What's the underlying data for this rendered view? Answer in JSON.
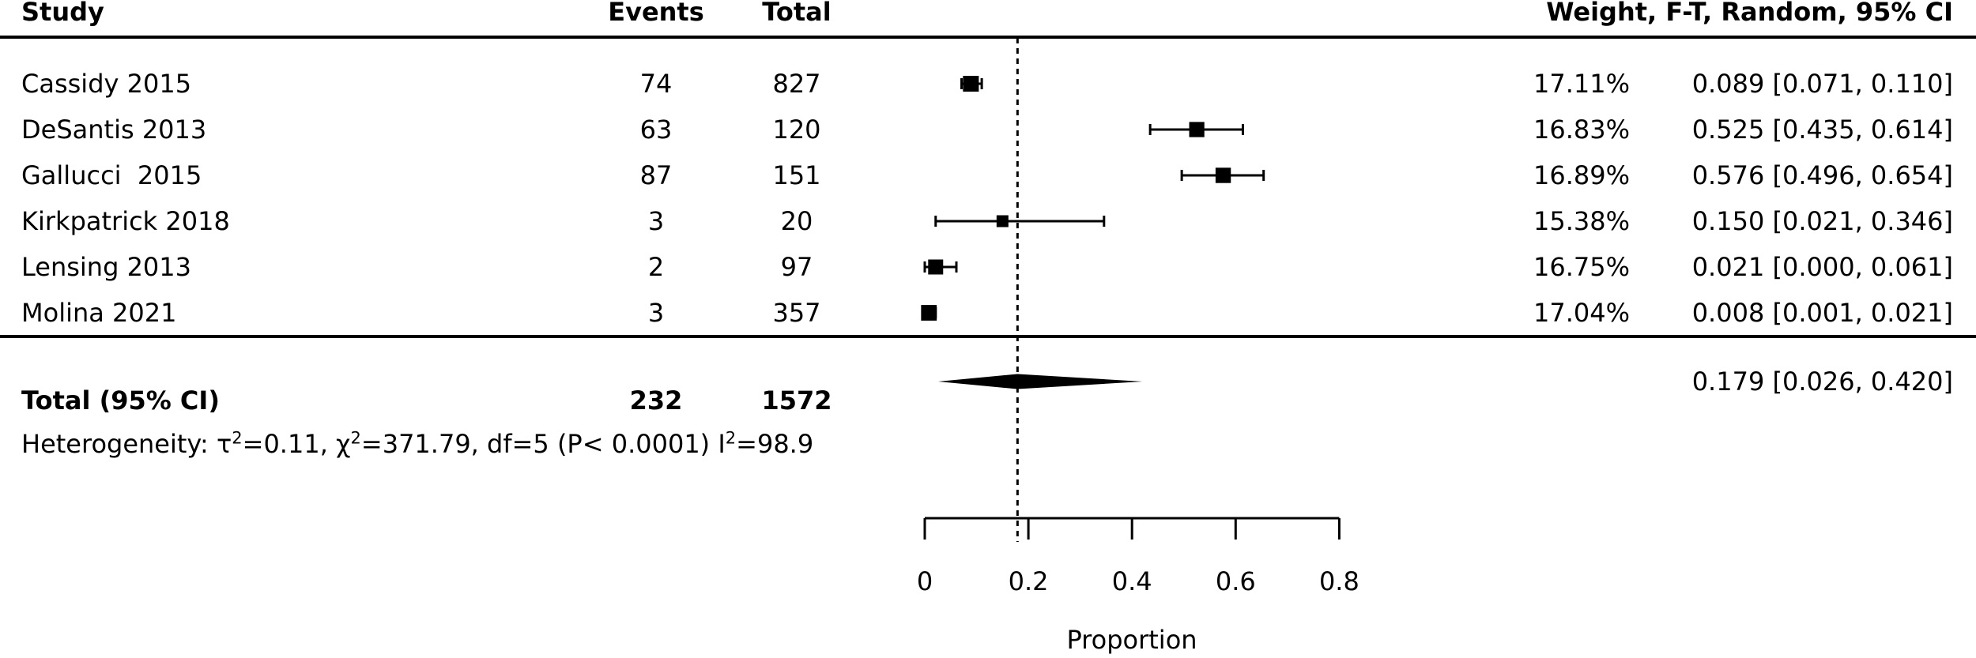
{
  "header": {
    "study": "Study",
    "events": "Events",
    "total": "Total",
    "right": "Weight, F-T, Random, 95% CI"
  },
  "chart_data": {
    "type": "forest",
    "xlabel": "Proportion",
    "xlim": [
      0,
      0.8
    ],
    "x_tick_labels": [
      "0",
      "0.2",
      "0.4",
      "0.6",
      "0.8"
    ],
    "x_tick_values": [
      0,
      0.2,
      0.4,
      0.6,
      0.8
    ],
    "grid": false,
    "marker_color": "#000000",
    "reference_line": 0.179,
    "studies": [
      {
        "study": "Cassidy 2015",
        "events": "74",
        "total": "827",
        "weight": "17.11%",
        "weight_value": 17.11,
        "estimate": 0.089,
        "ci_low": 0.071,
        "ci_high": 0.11,
        "ci_text": "0.089 [0.071, 0.110]"
      },
      {
        "study": "DeSantis 2013",
        "events": "63",
        "total": "120",
        "weight": "16.83%",
        "weight_value": 16.83,
        "estimate": 0.525,
        "ci_low": 0.435,
        "ci_high": 0.614,
        "ci_text": "0.525 [0.435, 0.614]"
      },
      {
        "study": "Gallucci  2015",
        "events": "87",
        "total": "151",
        "weight": "16.89%",
        "weight_value": 16.89,
        "estimate": 0.576,
        "ci_low": 0.496,
        "ci_high": 0.654,
        "ci_text": "0.576 [0.496, 0.654]"
      },
      {
        "study": "Kirkpatrick 2018",
        "events": "3",
        "total": "20",
        "weight": "15.38%",
        "weight_value": 15.38,
        "estimate": 0.15,
        "ci_low": 0.021,
        "ci_high": 0.346,
        "ci_text": "0.150 [0.021, 0.346]"
      },
      {
        "study": "Lensing 2013",
        "events": "2",
        "total": "97",
        "weight": "16.75%",
        "weight_value": 16.75,
        "estimate": 0.021,
        "ci_low": 0.0,
        "ci_high": 0.061,
        "ci_text": "0.021 [0.000, 0.061]"
      },
      {
        "study": "Molina 2021",
        "events": "3",
        "total": "357",
        "weight": "17.04%",
        "weight_value": 17.04,
        "estimate": 0.008,
        "ci_low": 0.001,
        "ci_high": 0.021,
        "ci_text": "0.008 [0.001, 0.021]"
      }
    ],
    "overall": {
      "label": "Total (95% CI)",
      "events": "232",
      "total": "1572",
      "estimate": 0.179,
      "ci_low": 0.026,
      "ci_high": 0.42,
      "ci_text": "0.179 [0.026, 0.420]"
    },
    "heterogeneity_segments": [
      {
        "t": "Heterogeneity: τ"
      },
      {
        "t": "2",
        "sup": true
      },
      {
        "t": "=0.11, χ"
      },
      {
        "t": "2",
        "sup": true
      },
      {
        "t": "=371.79, df=5 (P< 0.0001) I"
      },
      {
        "t": "2",
        "sup": true
      },
      {
        "t": "=98.9"
      }
    ]
  }
}
